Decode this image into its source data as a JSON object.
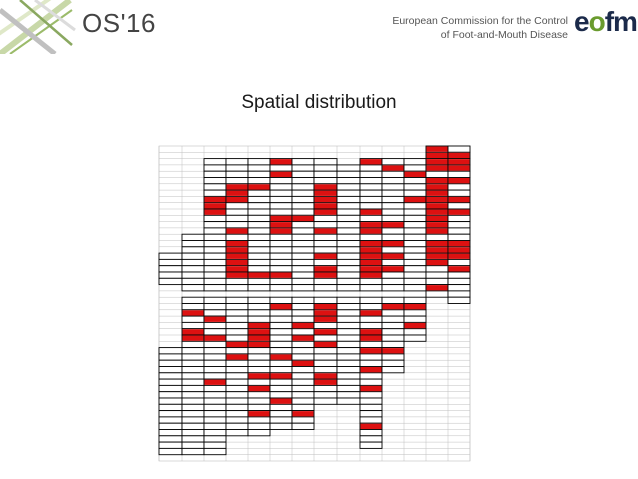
{
  "header": {
    "event_logo": "OS'16",
    "organization_line1": "European Commission for the Control",
    "organization_line2": "of Foot-and-Mouth Disease",
    "brand_logo_prefix": "e",
    "brand_logo_o": "o",
    "brand_logo_suffix": "fmd"
  },
  "slide": {
    "title": "Spatial distribution"
  },
  "colors": {
    "highlight": "#dd1111",
    "cell_border": "#000000",
    "grid_light": "#bfbfbf",
    "title_text": "#1a1a1a",
    "logo_green": "#6a9b2e",
    "logo_navy": "#1b2a4a"
  }
}
